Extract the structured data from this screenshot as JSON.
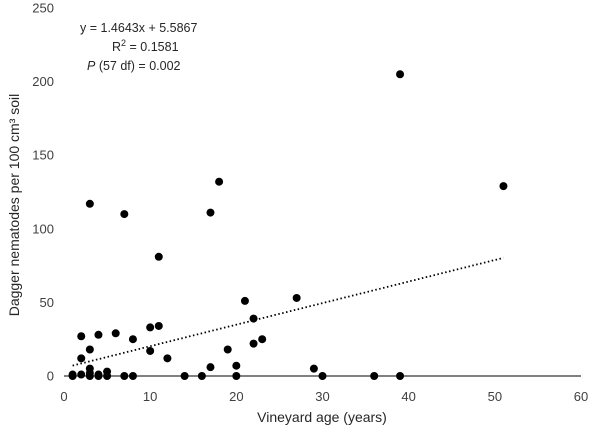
{
  "chart_data": {
    "type": "scatter",
    "xlabel": "Vineyard age (years)",
    "ylabel": "Dagger nematodes per 100 cm³ soil",
    "xlim": [
      0,
      60
    ],
    "ylim": [
      0,
      250
    ],
    "x_ticks": [
      "0",
      "10",
      "20",
      "30",
      "40",
      "50",
      "60"
    ],
    "y_ticks": [
      "0",
      "50",
      "100",
      "150",
      "200",
      "250"
    ],
    "grid": false,
    "annotation": {
      "equation": "y = 1.4643x + 5.5867",
      "r2_prefix": "R",
      "r2_sup": "2",
      "r2_value": " = 0.1581",
      "p_symbol": "P",
      "p_value": " (57 df) = 0.002"
    },
    "trendline": {
      "slope": 1.4643,
      "intercept": 5.5867,
      "x_start": 1,
      "x_end": 51,
      "style": "dotted"
    },
    "points": [
      {
        "x": 1,
        "y": 1
      },
      {
        "x": 1,
        "y": 0
      },
      {
        "x": 2,
        "y": 27
      },
      {
        "x": 2,
        "y": 12
      },
      {
        "x": 2,
        "y": 1
      },
      {
        "x": 3,
        "y": 117
      },
      {
        "x": 3,
        "y": 18
      },
      {
        "x": 3,
        "y": 5
      },
      {
        "x": 3,
        "y": 2
      },
      {
        "x": 3,
        "y": 0
      },
      {
        "x": 4,
        "y": 28
      },
      {
        "x": 4,
        "y": 1
      },
      {
        "x": 4,
        "y": 0
      },
      {
        "x": 5,
        "y": 3
      },
      {
        "x": 5,
        "y": 0
      },
      {
        "x": 6,
        "y": 29
      },
      {
        "x": 7,
        "y": 110
      },
      {
        "x": 7,
        "y": 0
      },
      {
        "x": 8,
        "y": 25
      },
      {
        "x": 8,
        "y": 0
      },
      {
        "x": 10,
        "y": 33
      },
      {
        "x": 10,
        "y": 17
      },
      {
        "x": 11,
        "y": 81
      },
      {
        "x": 11,
        "y": 34
      },
      {
        "x": 12,
        "y": 12
      },
      {
        "x": 14,
        "y": 0
      },
      {
        "x": 16,
        "y": 0
      },
      {
        "x": 17,
        "y": 111
      },
      {
        "x": 17,
        "y": 6
      },
      {
        "x": 18,
        "y": 132
      },
      {
        "x": 19,
        "y": 18
      },
      {
        "x": 20,
        "y": 7
      },
      {
        "x": 20,
        "y": 0
      },
      {
        "x": 21,
        "y": 51
      },
      {
        "x": 22,
        "y": 39
      },
      {
        "x": 22,
        "y": 22
      },
      {
        "x": 23,
        "y": 25
      },
      {
        "x": 27,
        "y": 53
      },
      {
        "x": 29,
        "y": 5
      },
      {
        "x": 30,
        "y": 0
      },
      {
        "x": 36,
        "y": 0
      },
      {
        "x": 39,
        "y": 205
      },
      {
        "x": 39,
        "y": 0
      },
      {
        "x": 51,
        "y": 129
      }
    ]
  }
}
